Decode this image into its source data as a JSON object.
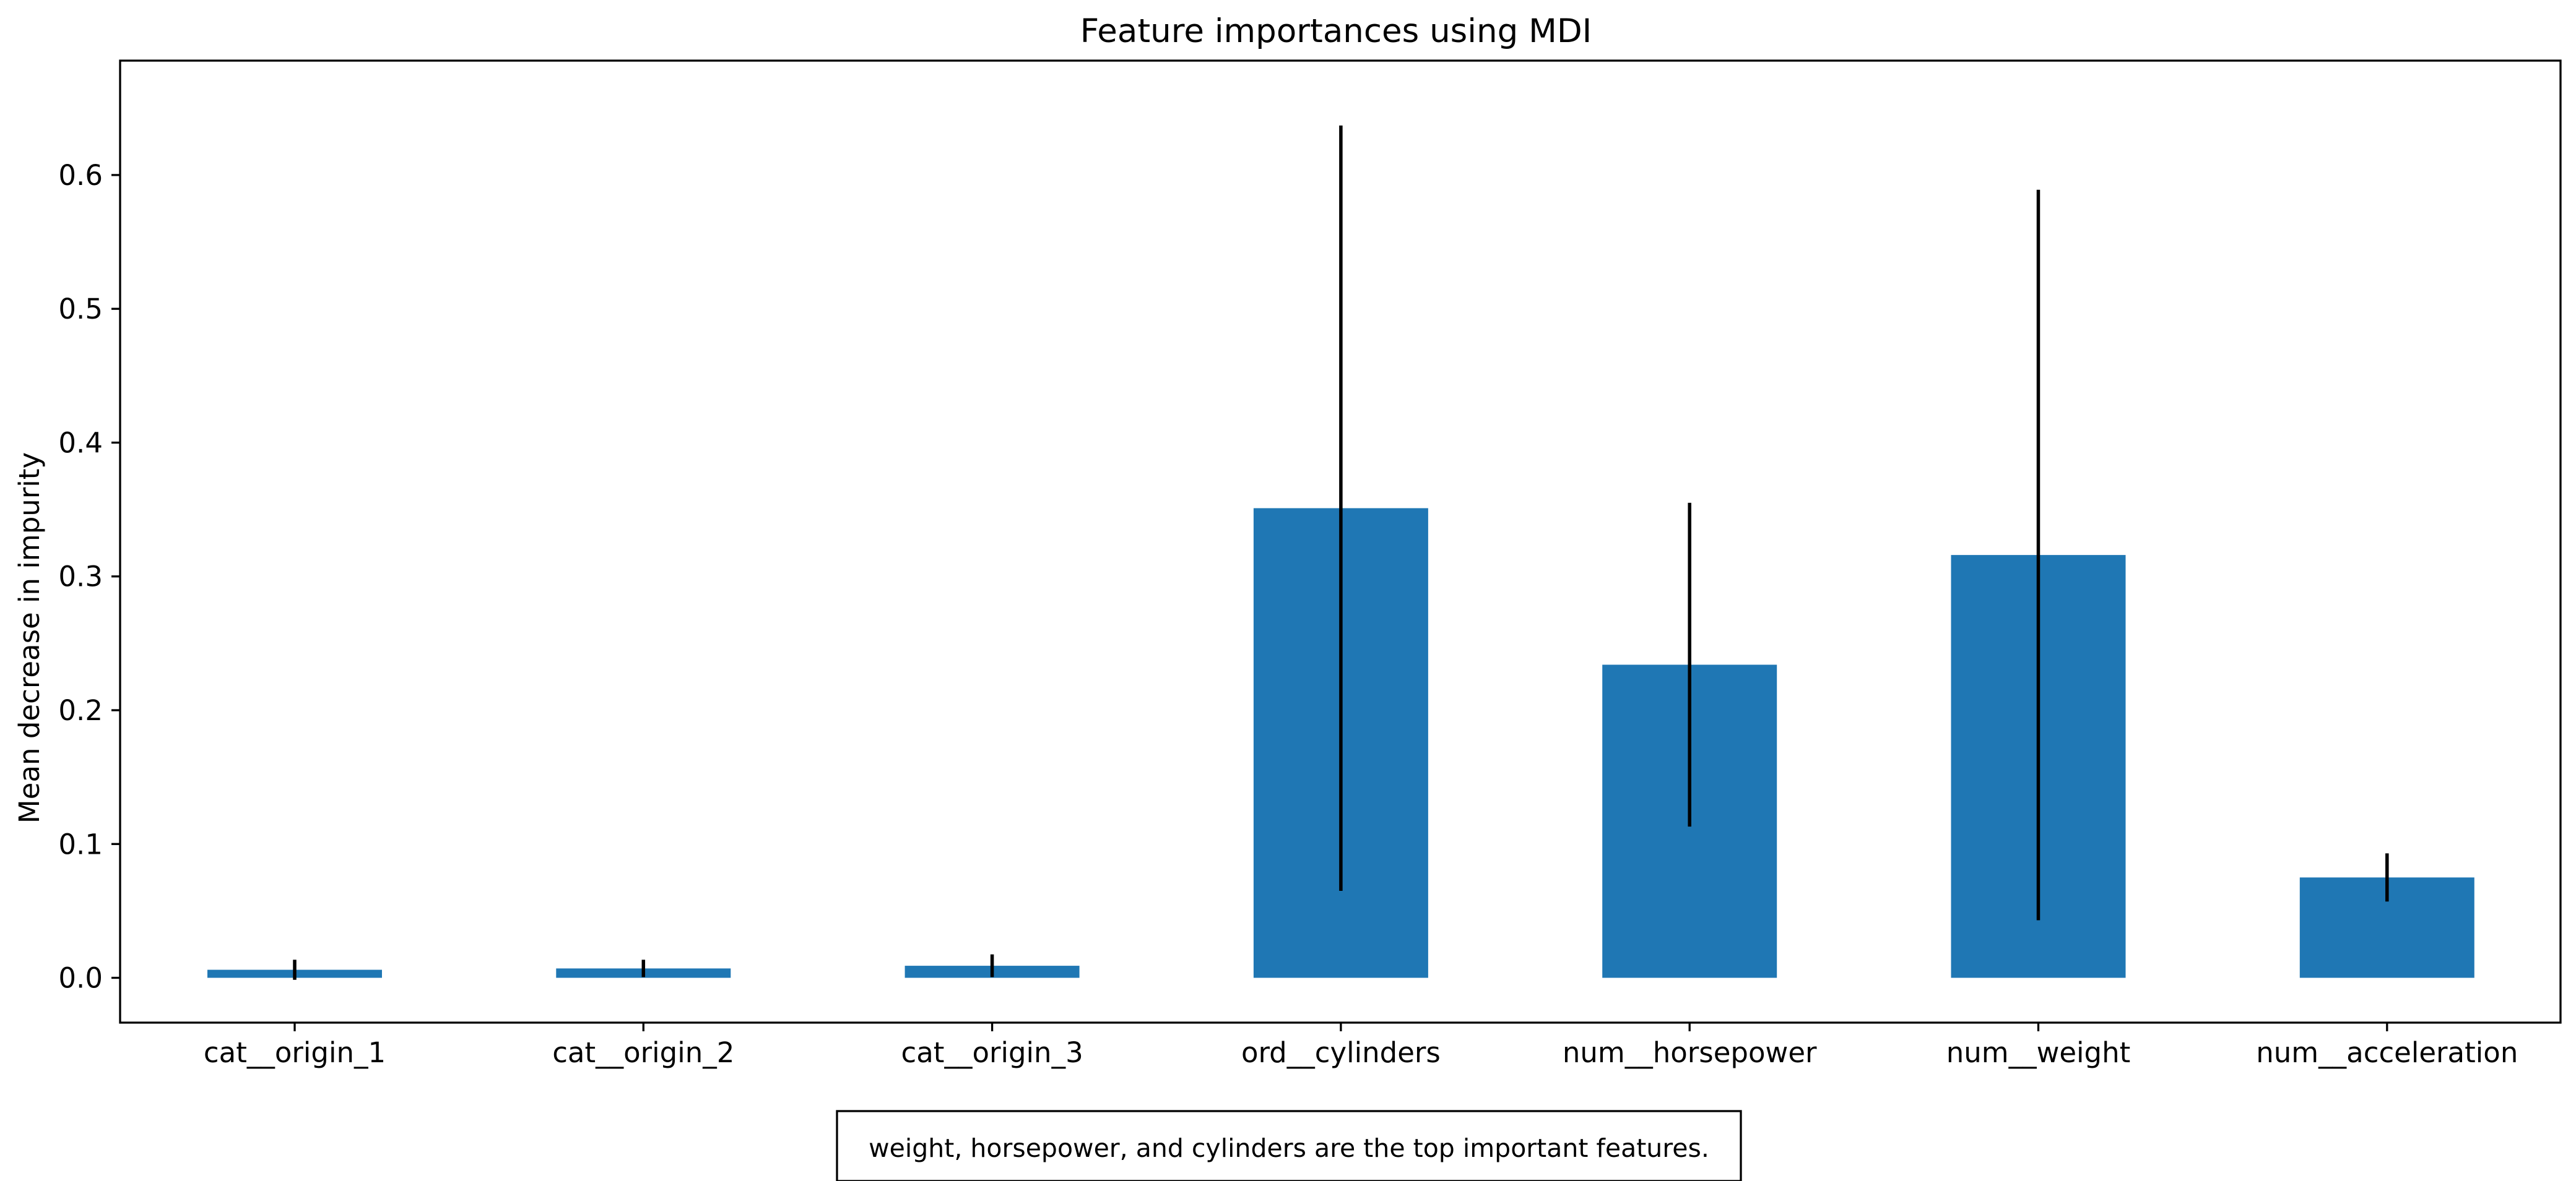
{
  "chart_data": {
    "type": "bar",
    "title": "Feature importances using MDI",
    "xlabel": "",
    "ylabel": "Mean decrease in impurity",
    "categories": [
      "cat__origin_1",
      "cat__origin_2",
      "cat__origin_3",
      "ord__cylinders",
      "num__horsepower",
      "num__weight",
      "num__acceleration"
    ],
    "values": [
      0.006,
      0.007,
      0.009,
      0.351,
      0.234,
      0.316,
      0.075
    ],
    "errors": [
      0.0075,
      0.0065,
      0.0085,
      0.286,
      0.121,
      0.273,
      0.018
    ],
    "ylim": [
      -0.0335,
      0.6855
    ],
    "yticks": [
      0.0,
      0.1,
      0.2,
      0.3,
      0.4,
      0.5,
      0.6
    ],
    "ytick_labels": [
      "0.0",
      "0.1",
      "0.2",
      "0.3",
      "0.4",
      "0.5",
      "0.6"
    ],
    "grid": false,
    "colors": {
      "bar": "#1f77b4",
      "error_bar": "#000000",
      "axes": "#000000",
      "text": "#000000"
    },
    "annotation": "weight, horsepower, and cylinders are the top important features."
  }
}
